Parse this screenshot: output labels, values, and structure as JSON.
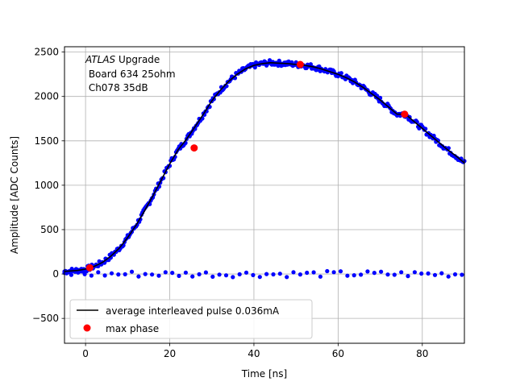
{
  "chart_data": {
    "type": "scatter",
    "xlabel": "Time [ns]",
    "ylabel": "Amplitude [ADC Counts]",
    "xlim": [
      -5,
      90
    ],
    "ylim": [
      -780,
      2560
    ],
    "xticks": [
      0,
      20,
      40,
      60,
      80
    ],
    "yticks": [
      -500,
      0,
      500,
      1000,
      1500,
      2000,
      2500
    ],
    "ytick_labels": [
      "−500",
      "0",
      "500",
      "1000",
      "1500",
      "2000",
      "2500"
    ],
    "grid": true,
    "legend_position": "lower-left",
    "annotation": {
      "italic_word": "ATLAS",
      "line1_rest": " Upgrade",
      "line2": " Board 634 25ohm",
      "line3": " Ch078 35dB"
    },
    "series": [
      {
        "name": "average interleaved pulse 0.036mA",
        "kind": "line",
        "color": "#000000",
        "x": [
          -5,
          -2,
          0,
          2,
          4,
          6,
          8,
          10,
          12,
          14,
          16,
          18,
          20,
          22,
          24,
          26,
          28,
          30,
          32,
          34,
          36,
          38,
          40,
          42,
          44,
          46,
          48,
          50,
          52,
          54,
          56,
          58,
          60,
          62,
          64,
          66,
          68,
          70,
          72,
          74,
          76,
          78,
          80,
          82,
          84,
          86,
          88,
          90
        ],
        "y": [
          30,
          40,
          55,
          85,
          130,
          200,
          290,
          410,
          550,
          710,
          880,
          1060,
          1240,
          1400,
          1520,
          1660,
          1800,
          1950,
          2070,
          2170,
          2250,
          2310,
          2350,
          2370,
          2380,
          2375,
          2370,
          2360,
          2350,
          2335,
          2310,
          2280,
          2250,
          2210,
          2160,
          2100,
          2030,
          1960,
          1880,
          1800,
          1800,
          1720,
          1640,
          1560,
          1480,
          1400,
          1330,
          1250
        ]
      },
      {
        "name": "",
        "kind": "scatter",
        "color": "#0000ff"
      },
      {
        "name": "max phase",
        "kind": "scatter",
        "color": "#ff0000",
        "x": [
          1,
          25.8,
          51,
          75.8
        ],
        "y": [
          70,
          1420,
          2360,
          1800
        ]
      }
    ]
  }
}
